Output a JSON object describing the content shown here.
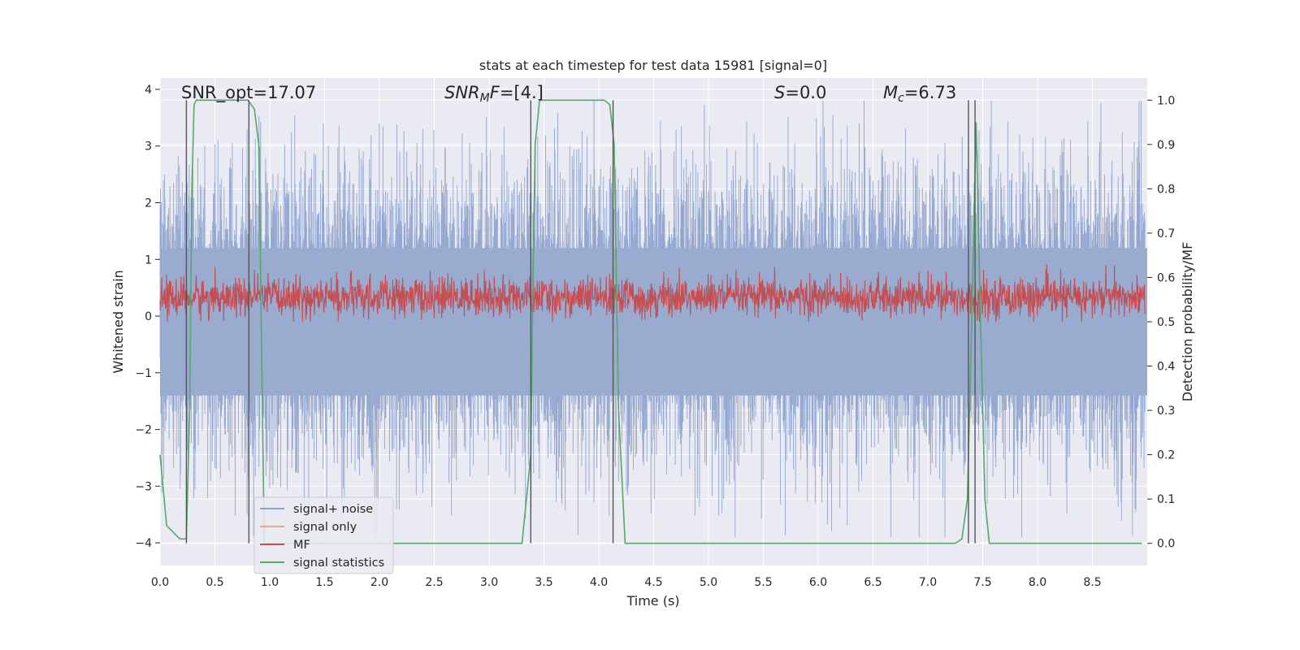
{
  "chart_data": {
    "type": "line",
    "title": "stats at each timestep for test data 15981 [signal=0]",
    "xlabel": "Time (s)",
    "ylabel": "Whitened strain",
    "y2label": "Detection probability/MF",
    "xlim": [
      0.0,
      9.0
    ],
    "ylim": [
      -4.4,
      4.2
    ],
    "y2lim": [
      -0.05,
      1.05
    ],
    "x_ticks": [
      "0.0",
      "0.5",
      "1.0",
      "1.5",
      "2.0",
      "2.5",
      "3.0",
      "3.5",
      "4.0",
      "4.5",
      "5.0",
      "5.5",
      "6.0",
      "6.5",
      "7.0",
      "7.5",
      "8.0",
      "8.5"
    ],
    "y_ticks": [
      "4",
      "3",
      "2",
      "1",
      "0",
      "−1",
      "−2",
      "−3",
      "−4"
    ],
    "y2_ticks": [
      "1.0",
      "0.9",
      "0.8",
      "0.7",
      "0.6",
      "0.5",
      "0.4",
      "0.3",
      "0.2",
      "0.1",
      "0.0"
    ],
    "grid": true,
    "legend_placement": "lower-left",
    "annotations": [
      {
        "text": "SNR_opt=17.07",
        "x": 0.2,
        "y": 3.85
      },
      {
        "text": "SNR_M F=[4.]",
        "x": 2.6,
        "y": 3.85
      },
      {
        "text": "S=0.0",
        "x": 5.6,
        "y": 3.85
      },
      {
        "text": "M_c=6.73",
        "x": 6.6,
        "y": 3.85
      }
    ],
    "series": [
      {
        "name": "signal+ noise",
        "color": "#8da2cd",
        "description_values": "whitened noise, approx. ±2 typical, peaks to ±3.8",
        "axis": "left"
      },
      {
        "name": "signal only",
        "color": "#e8a98c",
        "axis": "left",
        "values": []
      },
      {
        "name": "MF",
        "color": "#c44e52",
        "description_values": "matched filter, approx. 0.5–0.6 on right axis",
        "axis": "right"
      },
      {
        "name": "signal statistics",
        "color": "#55a868",
        "axis": "right",
        "x": [
          0.0,
          0.06,
          0.1,
          0.18,
          0.24,
          0.27,
          0.29,
          0.31,
          0.33,
          0.4,
          0.6,
          0.8,
          0.86,
          0.9,
          0.95,
          1.05,
          1.2,
          3.3,
          3.38,
          3.4,
          3.42,
          3.46,
          4.05,
          4.1,
          4.14,
          4.18,
          4.24,
          7.25,
          7.31,
          7.36,
          7.4,
          7.44,
          7.48,
          7.52,
          7.56,
          8.95
        ],
        "values": [
          0.2,
          0.04,
          0.03,
          0.01,
          0.01,
          0.3,
          0.8,
          0.99,
          1.0,
          1.0,
          1.0,
          1.0,
          0.98,
          0.9,
          0.0,
          0.0,
          0.0,
          0.0,
          0.2,
          0.6,
          0.9,
          1.0,
          1.0,
          0.99,
          0.9,
          0.3,
          0.0,
          0.0,
          0.01,
          0.1,
          0.5,
          0.95,
          0.5,
          0.1,
          0.0,
          0.0
        ]
      }
    ],
    "vertical_markers": [
      0.24,
      0.81,
      3.38,
      4.13,
      7.37,
      7.43
    ],
    "marker_color": "#555555"
  }
}
